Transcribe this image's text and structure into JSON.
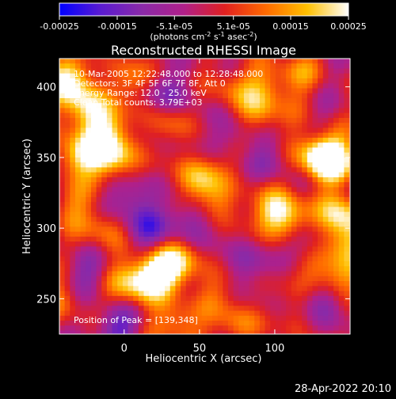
{
  "chart_data": {
    "type": "heatmap",
    "title": "Reconstructed RHESSI Image",
    "xlabel": "Heliocentric X (arcsec)",
    "ylabel": "Heliocentric Y (arcsec)",
    "xlim": [
      -43,
      150
    ],
    "ylim": [
      225,
      420
    ],
    "xticks": [
      0,
      50,
      100
    ],
    "yticks": [
      250,
      300,
      350,
      400
    ],
    "colorbar": {
      "range": [
        -0.00025,
        0.00025
      ],
      "ticks": [
        -0.00025,
        -0.00015,
        -5.1e-05,
        5.1e-05,
        0.00015,
        0.00025
      ],
      "tick_labels": [
        "-0.00025",
        "-0.00015",
        "-5.1e-05",
        "5.1e-05",
        "0.00015",
        "0.00025"
      ],
      "units_line1": "(photons cm",
      "units_sup1": "-2",
      "units_mid": " s",
      "units_sup2": "-1",
      "units_tail": " asec",
      "units_sup3": "-2",
      "units_close": ")",
      "colors": [
        "#0000ff",
        "#5a1bd0",
        "#8a2aa8",
        "#b0208a",
        "#e02020",
        "#ff6a00",
        "#ffc000",
        "#ffffff"
      ]
    },
    "annotations": [
      "10-Mar-2005 12:22:48.000 to 12:28:48.000",
      "Detectors: 3F 4F 5F 6F 7F 8F, Att 0",
      "Energy Range: 12.0 - 25.0 keV",
      "Clean     Total counts: 3.79E+03"
    ],
    "peak_label": "Position of Peak = [139,348]",
    "peak": [
      139,
      348
    ],
    "hotspots": [
      {
        "x": -38,
        "y": 405,
        "v": 0.00025
      },
      {
        "x": -25,
        "y": 385,
        "v": 0.0002
      },
      {
        "x": -12,
        "y": 370,
        "v": 0.00018
      },
      {
        "x": -30,
        "y": 352,
        "v": 0.00022
      },
      {
        "x": -8,
        "y": 350,
        "v": 0.00023
      },
      {
        "x": -40,
        "y": 250,
        "v": 0.00012
      },
      {
        "x": 20,
        "y": 267,
        "v": 0.00025
      },
      {
        "x": 35,
        "y": 275,
        "v": 0.0002
      },
      {
        "x": 5,
        "y": 260,
        "v": 0.00018
      },
      {
        "x": 50,
        "y": 335,
        "v": 0.00018
      },
      {
        "x": 62,
        "y": 318,
        "v": 0.00012
      },
      {
        "x": 100,
        "y": 313,
        "v": 0.00018
      },
      {
        "x": 110,
        "y": 305,
        "v": 0.00015
      },
      {
        "x": 90,
        "y": 380,
        "v": 0.00016
      },
      {
        "x": 95,
        "y": 400,
        "v": 0.00012
      },
      {
        "x": 139,
        "y": 348,
        "v": 0.00025
      },
      {
        "x": 128,
        "y": 352,
        "v": 0.00022
      },
      {
        "x": 145,
        "y": 310,
        "v": 0.00022
      },
      {
        "x": 148,
        "y": 290,
        "v": 0.00018
      },
      {
        "x": 143,
        "y": 265,
        "v": 0.00014
      },
      {
        "x": 35,
        "y": 232,
        "v": 0.00016
      },
      {
        "x": 75,
        "y": 232,
        "v": 0.00012
      },
      {
        "x": 120,
        "y": 240,
        "v": 0.0001
      },
      {
        "x": -15,
        "y": 300,
        "v": 0.00013
      },
      {
        "x": 70,
        "y": 400,
        "v": 0.0001
      },
      {
        "x": 115,
        "y": 410,
        "v": 0.00011
      },
      {
        "x": -35,
        "y": 318,
        "v": 0.0001
      },
      {
        "x": 5,
        "y": 405,
        "v": 0.00012
      },
      {
        "x": 30,
        "y": 375,
        "v": 9e-05
      },
      {
        "x": 80,
        "y": 355,
        "v": 0.0001
      },
      {
        "x": 125,
        "y": 270,
        "v": 9e-05
      },
      {
        "x": 60,
        "y": 255,
        "v": 8e-05
      }
    ],
    "coldspots": [
      {
        "x": 15,
        "y": 300,
        "v": -0.00014
      },
      {
        "x": 5,
        "y": 320,
        "v": -0.00012
      },
      {
        "x": -5,
        "y": 230,
        "v": -0.00014
      },
      {
        "x": 75,
        "y": 365,
        "v": -0.00014
      },
      {
        "x": 30,
        "y": 395,
        "v": -0.00012
      },
      {
        "x": 130,
        "y": 245,
        "v": -0.00016
      },
      {
        "x": 95,
        "y": 350,
        "v": -0.00012
      },
      {
        "x": 120,
        "y": 290,
        "v": -0.0001
      },
      {
        "x": 45,
        "y": 305,
        "v": -0.00011
      },
      {
        "x": -25,
        "y": 265,
        "v": -0.0001
      },
      {
        "x": 80,
        "y": 275,
        "v": -9e-05
      }
    ]
  },
  "footer": {
    "timestamp": "28-Apr-2022 20:10"
  }
}
